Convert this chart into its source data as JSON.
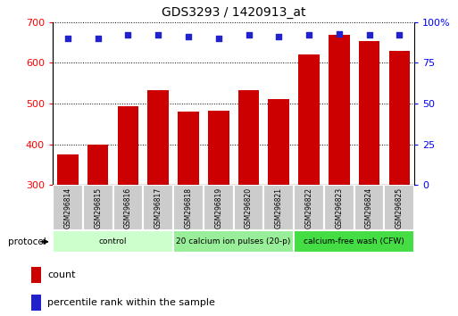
{
  "title": "GDS3293 / 1420913_at",
  "samples": [
    "GSM296814",
    "GSM296815",
    "GSM296816",
    "GSM296817",
    "GSM296818",
    "GSM296819",
    "GSM296820",
    "GSM296821",
    "GSM296822",
    "GSM296823",
    "GSM296824",
    "GSM296825"
  ],
  "counts": [
    375,
    400,
    493,
    532,
    480,
    483,
    532,
    510,
    620,
    668,
    653,
    630
  ],
  "percentile_ranks": [
    90,
    90,
    92,
    92,
    91,
    90,
    92,
    91,
    92,
    93,
    92,
    92
  ],
  "bar_color": "#cc0000",
  "dot_color": "#2222cc",
  "ylim_left": [
    300,
    700
  ],
  "ylim_right": [
    0,
    100
  ],
  "yticks_left": [
    300,
    400,
    500,
    600,
    700
  ],
  "yticks_right": [
    0,
    25,
    50,
    75,
    100
  ],
  "bg_color": "#ffffff",
  "cell_bg": "#cccccc",
  "groups": [
    {
      "label": "control",
      "start": 0,
      "end": 3,
      "color": "#ccffcc"
    },
    {
      "label": "20 calcium ion pulses (20-p)",
      "start": 4,
      "end": 7,
      "color": "#99ee99"
    },
    {
      "label": "calcium-free wash (CFW)",
      "start": 8,
      "end": 11,
      "color": "#44dd44"
    }
  ],
  "protocol_label": "protocol",
  "legend_count_label": "count",
  "legend_pct_label": "percentile rank within the sample",
  "bar_bottom": 300
}
